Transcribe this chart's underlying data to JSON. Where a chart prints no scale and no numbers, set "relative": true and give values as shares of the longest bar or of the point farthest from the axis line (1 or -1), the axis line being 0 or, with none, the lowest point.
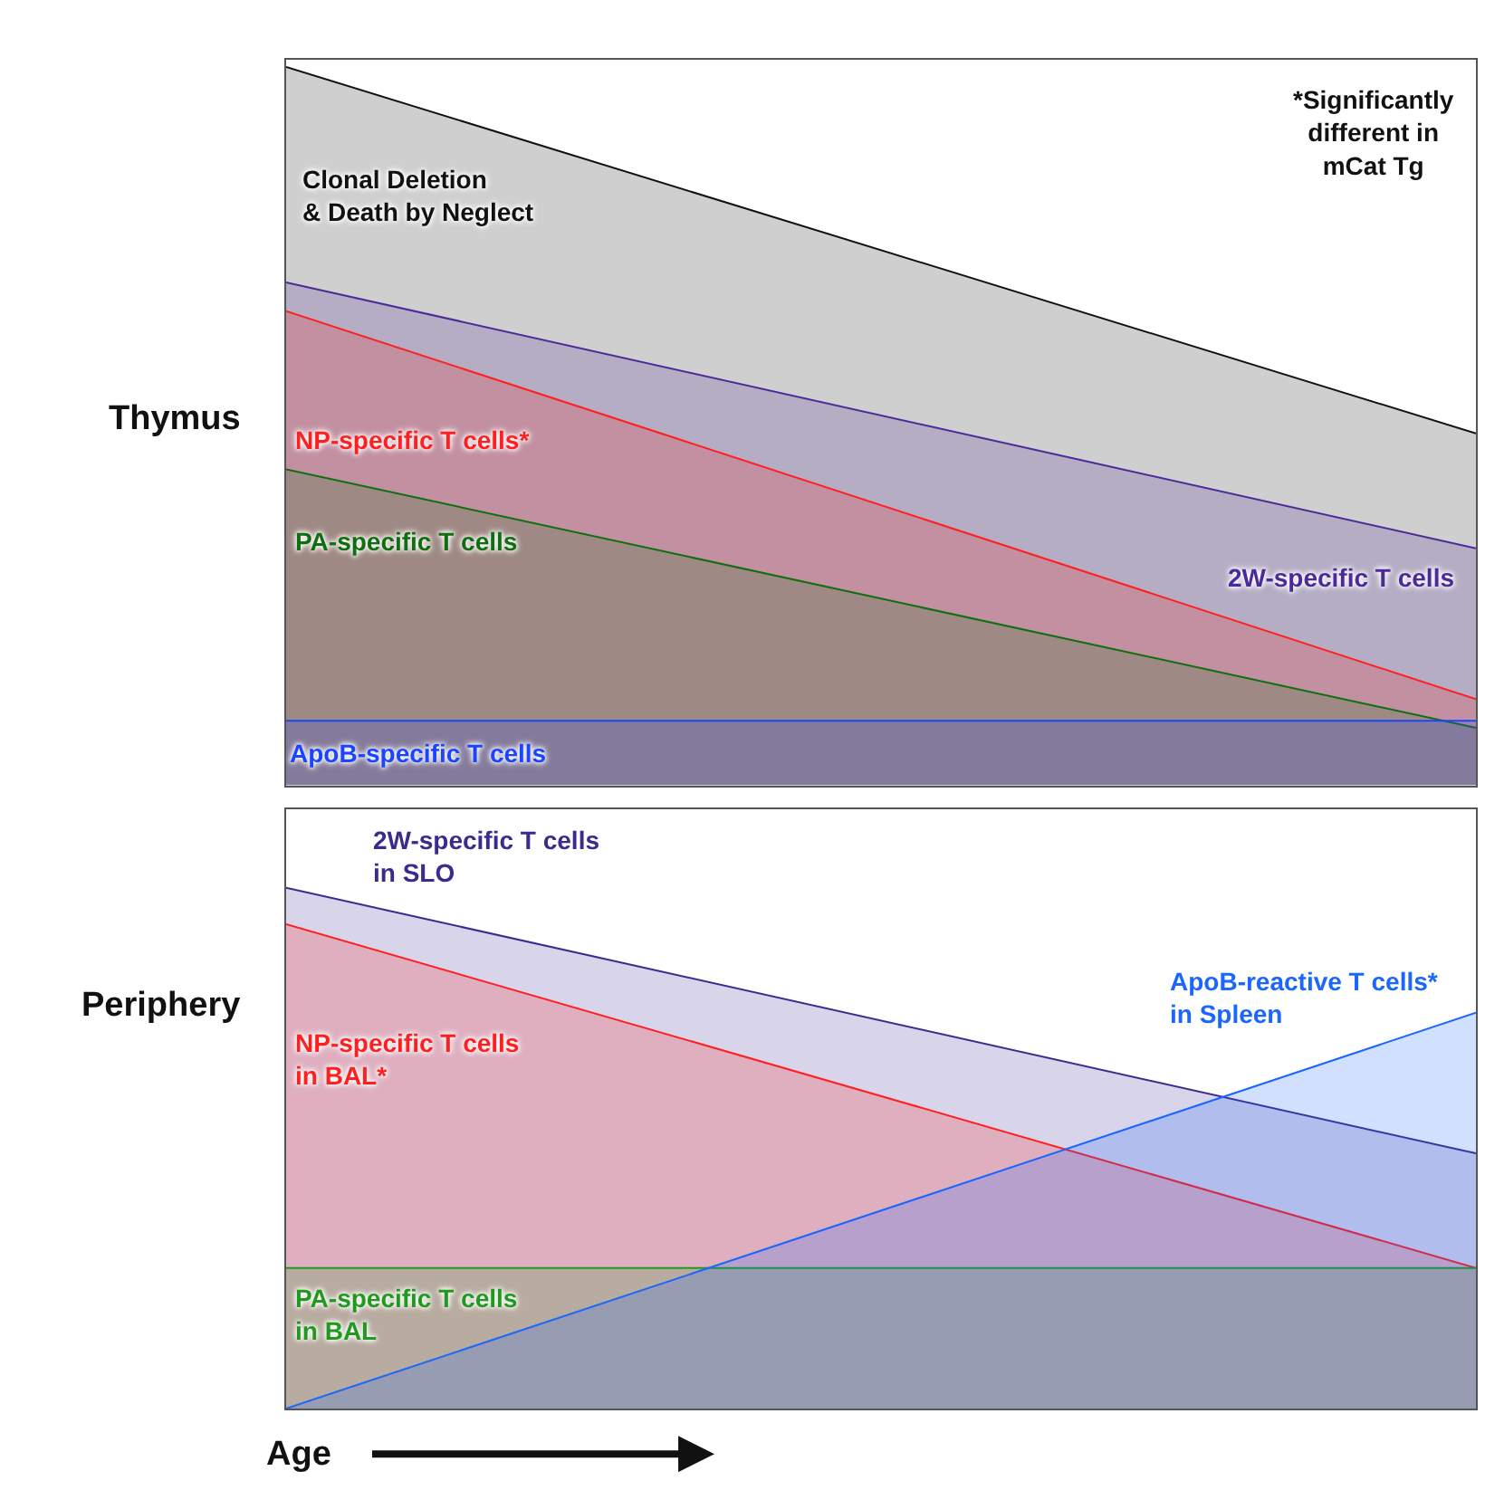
{
  "chart_data": [
    {
      "type": "area",
      "relative": true,
      "ylabel": "Thymus",
      "categories": [
        null,
        null
      ],
      "annotations": [
        "*Significantly\ndifferent in\nmCat Tg"
      ],
      "series": [
        {
          "name": "Clonal Deletion\n& Death by Neglect",
          "color": "#111111",
          "values": [
            1,
            0.49
          ]
        },
        {
          "name": "2W-specific T cells",
          "color": "#4b2a99",
          "values": [
            0.7,
            0.33
          ]
        },
        {
          "name": "NP-specific T cells*",
          "color": "#ff1f1f",
          "values": [
            0.66,
            0.12
          ]
        },
        {
          "name": "PA-specific T cells",
          "color": "#0f6e0f",
          "values": [
            0.44,
            0.08
          ]
        },
        {
          "name": "ApoB-specific T cells",
          "color": "#1a44ff",
          "values": [
            0.09,
            0.09
          ]
        }
      ]
    },
    {
      "type": "area",
      "relative": true,
      "ylabel": "Periphery",
      "xlabel": "Age",
      "categories": [
        null,
        null
      ],
      "series": [
        {
          "name": "2W-specific T cells\nin SLO",
          "color": "#3d2a8f",
          "values": [
            1,
            0.49
          ]
        },
        {
          "name": "NP-specific T cells\nin BAL*",
          "color": "#ff1f1f",
          "values": [
            0.93,
            0.27
          ]
        },
        {
          "name": "PA-specific T cells\nin BAL",
          "color": "#1f9a1f",
          "values": [
            0.27,
            0.27
          ]
        },
        {
          "name": "ApoB-reactive T cells*\nin Spleen",
          "color": "#1a66ff",
          "values": [
            0,
            0.76
          ]
        }
      ]
    }
  ]
}
